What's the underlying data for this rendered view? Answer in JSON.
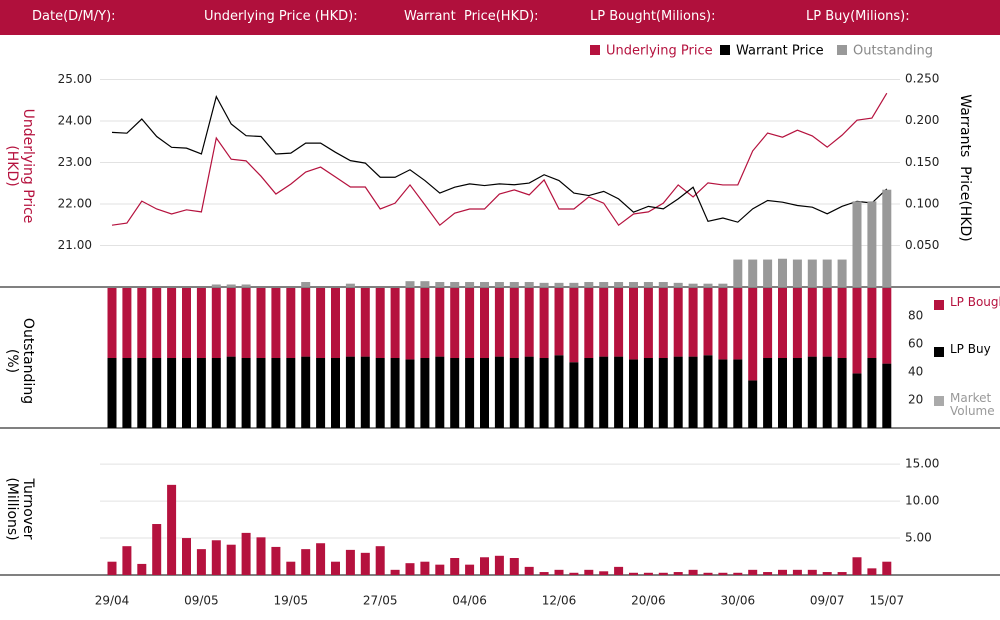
{
  "header": {
    "labels": [
      "Date(D/M/Y):",
      "Underlying Price (HKD):",
      "Warrant  Price(HKD):",
      "LP Bought(Milions):",
      "LP Buy(Milions):"
    ]
  },
  "chart_data": [
    {
      "type": "line",
      "ylabel": "Underlying Price (HKD)",
      "y2label": "Warrants  Price(HKD)",
      "ylim": [
        20,
        25.35
      ],
      "yticks": [
        {
          "value": 25,
          "label": "25.00"
        },
        {
          "value": 24,
          "label": "24.00"
        },
        {
          "value": 23,
          "label": "23.00"
        },
        {
          "value": 22,
          "label": "22.00"
        },
        {
          "value": 21,
          "label": "21.00"
        }
      ],
      "y2lim": [
        0,
        0.267
      ],
      "y2ticks": [
        {
          "value": 0.25,
          "label": "0.250"
        },
        {
          "value": 0.2,
          "label": "0.200"
        },
        {
          "value": 0.15,
          "label": "0.150"
        },
        {
          "value": 0.1,
          "label": "0.100"
        },
        {
          "value": 0.05,
          "label": "0.050"
        }
      ],
      "grid": true,
      "series": [
        {
          "name": "Underlying Price",
          "color": "#b5123e",
          "kind": "line",
          "axis": "y",
          "values": [
            21.49,
            21.54,
            22.07,
            21.88,
            21.76,
            21.86,
            21.81,
            23.59,
            23.08,
            23.04,
            22.67,
            22.24,
            22.48,
            22.77,
            22.89,
            22.65,
            22.41,
            22.41,
            21.88,
            22.02,
            22.46,
            21.98,
            21.49,
            21.78,
            21.88,
            21.88,
            22.24,
            22.34,
            22.22,
            22.58,
            21.88,
            21.88,
            22.17,
            22.02,
            21.49,
            21.76,
            21.81,
            22.02,
            22.46,
            22.17,
            22.51,
            22.46,
            22.46,
            23.28,
            23.71,
            23.61,
            23.78,
            23.64,
            23.37,
            23.66,
            24.02,
            24.07,
            24.67
          ]
        },
        {
          "name": "Warrant  Price",
          "color": "#000000",
          "kind": "line",
          "axis": "y2",
          "values": [
            0.186,
            0.185,
            0.202,
            0.181,
            0.168,
            0.167,
            0.16,
            0.229,
            0.196,
            0.182,
            0.181,
            0.16,
            0.161,
            0.173,
            0.173,
            0.162,
            0.152,
            0.149,
            0.132,
            0.132,
            0.141,
            0.128,
            0.113,
            0.12,
            0.124,
            0.122,
            0.124,
            0.123,
            0.125,
            0.135,
            0.128,
            0.113,
            0.11,
            0.115,
            0.106,
            0.09,
            0.097,
            0.094,
            0.106,
            0.12,
            0.079,
            0.083,
            0.078,
            0.094,
            0.104,
            0.102,
            0.098,
            0.096,
            0.088,
            0.097,
            0.103,
            0.101,
            0.118
          ]
        },
        {
          "name": "Outstanding",
          "color": "#999999",
          "kind": "bar",
          "axis": "y2",
          "values": [
            0,
            0,
            0,
            0,
            0,
            0,
            0,
            0.003,
            0.003,
            0.003,
            0,
            0,
            0,
            0.006,
            0,
            0,
            0.004,
            0,
            0,
            0,
            0.007,
            0.007,
            0.006,
            0.006,
            0.006,
            0.006,
            0.006,
            0.006,
            0.006,
            0.005,
            0.005,
            0.005,
            0.006,
            0.006,
            0.006,
            0.006,
            0.006,
            0.006,
            0.005,
            0.004,
            0.004,
            0.004,
            0.033,
            0.033,
            0.033,
            0.034,
            0.033,
            0.033,
            0.033,
            0.033,
            0.103,
            0.103,
            0.117
          ]
        }
      ]
    },
    {
      "type": "stacked_bar",
      "ylabel": "Outstanding (%)",
      "ylim": [
        0,
        100
      ],
      "yticks": [
        80,
        60,
        40,
        20
      ],
      "series": [
        {
          "name": "LP Bought",
          "color": "#b5123e",
          "values": [
            50,
            50,
            50,
            50,
            50,
            50,
            50,
            50,
            49,
            50,
            50,
            50,
            50,
            49,
            50,
            50,
            49,
            49,
            50,
            50,
            51,
            50,
            49,
            50,
            50,
            50,
            49,
            50,
            49,
            50,
            48,
            53,
            50,
            49,
            49,
            51,
            50,
            50,
            49,
            49,
            48,
            51,
            51,
            66,
            50,
            50,
            50,
            49,
            49,
            50,
            61,
            50,
            54
          ]
        },
        {
          "name": "LP Buy",
          "color": "#000000",
          "values": [
            50,
            50,
            50,
            50,
            50,
            50,
            50,
            50,
            51,
            50,
            50,
            50,
            50,
            51,
            50,
            50,
            51,
            51,
            50,
            50,
            49,
            50,
            51,
            50,
            50,
            50,
            51,
            50,
            51,
            50,
            52,
            47,
            50,
            51,
            51,
            49,
            50,
            50,
            51,
            51,
            52,
            49,
            49,
            34,
            50,
            50,
            50,
            51,
            51,
            50,
            39,
            50,
            46
          ]
        },
        {
          "name": "Market Volume",
          "color": "#aaaaaa"
        }
      ]
    },
    {
      "type": "bar",
      "ylabel": "Turnover (Millions)",
      "color": "#b5123e",
      "ylim": [
        0,
        18
      ],
      "yticks": [
        {
          "value": 15,
          "label": "15.00"
        },
        {
          "value": 10,
          "label": "10.00"
        },
        {
          "value": 5,
          "label": "5.00"
        }
      ],
      "grid": true,
      "categories": [
        "29/04",
        null,
        null,
        null,
        null,
        null,
        "09/05",
        null,
        null,
        null,
        null,
        null,
        "19/05",
        null,
        null,
        null,
        null,
        null,
        "27/05",
        null,
        null,
        null,
        null,
        null,
        "04/06",
        null,
        null,
        null,
        null,
        null,
        "12/06",
        null,
        null,
        null,
        null,
        null,
        "20/06",
        null,
        null,
        null,
        null,
        null,
        "30/06",
        null,
        null,
        null,
        null,
        null,
        "09/07",
        null,
        null,
        null,
        "15/07"
      ],
      "values": [
        1.8,
        3.9,
        1.5,
        6.9,
        12.2,
        5.0,
        3.5,
        4.7,
        4.1,
        5.7,
        5.1,
        3.8,
        1.8,
        3.5,
        4.3,
        1.8,
        3.4,
        3.0,
        3.9,
        0.7,
        1.6,
        1.8,
        1.4,
        2.3,
        1.4,
        2.4,
        2.6,
        2.3,
        1.1,
        0.4,
        0.7,
        0.3,
        0.7,
        0.5,
        1.1,
        0.3,
        0.3,
        0.3,
        0.4,
        0.7,
        0.3,
        0.3,
        0.3,
        0.7,
        0.4,
        0.7,
        0.7,
        0.7,
        0.4,
        0.4,
        2.4,
        0.9,
        1.8
      ]
    }
  ]
}
